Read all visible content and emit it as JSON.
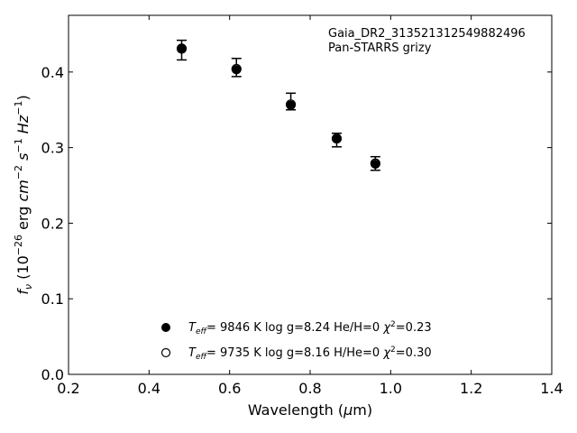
{
  "chart_data": {
    "type": "scatter",
    "title": "",
    "xlabel": "Wavelength (μm)",
    "ylabel": "f_ν (10^-26 erg cm^-2 s^-1 Hz^-1)",
    "xlim": [
      0.2,
      1.4
    ],
    "ylim": [
      0.0,
      0.475
    ],
    "xticks": [
      "0.2",
      "0.4",
      "0.6",
      "0.8",
      "1.0",
      "1.2",
      "1.4"
    ],
    "yticks": [
      "0.0",
      "0.1",
      "0.2",
      "0.3",
      "0.4"
    ],
    "grid": false,
    "annotation": {
      "line1": "Gaia_DR2_313521312549882496",
      "line2": "Pan-STARRS grizy"
    },
    "observed": {
      "x": [
        0.481,
        0.617,
        0.752,
        0.866,
        0.962
      ],
      "y": [
        0.429,
        0.406,
        0.361,
        0.31,
        0.279
      ],
      "yerr": [
        0.013,
        0.012,
        0.011,
        0.009,
        0.009
      ]
    },
    "series": [
      {
        "marker": "filled-circle",
        "x": [
          0.481,
          0.617,
          0.752,
          0.866,
          0.962
        ],
        "y": [
          0.431,
          0.403,
          0.356,
          0.312,
          0.278
        ]
      },
      {
        "marker": "open-circle",
        "x": [
          0.481,
          0.617,
          0.752,
          0.866,
          0.962
        ],
        "y": [
          0.431,
          0.404,
          0.357,
          0.312,
          0.279
        ]
      }
    ],
    "legend": {
      "placement": "lower-center",
      "entries": [
        {
          "marker": "filled-circle",
          "teff": "9846",
          "logg": "log g=8.24",
          "comp": "He/H=0",
          "chi2": "=0.23"
        },
        {
          "marker": "open-circle",
          "teff": "9735",
          "logg": "log g=8.16",
          "comp": "H/He=0",
          "chi2": "=0.30"
        }
      ]
    }
  }
}
